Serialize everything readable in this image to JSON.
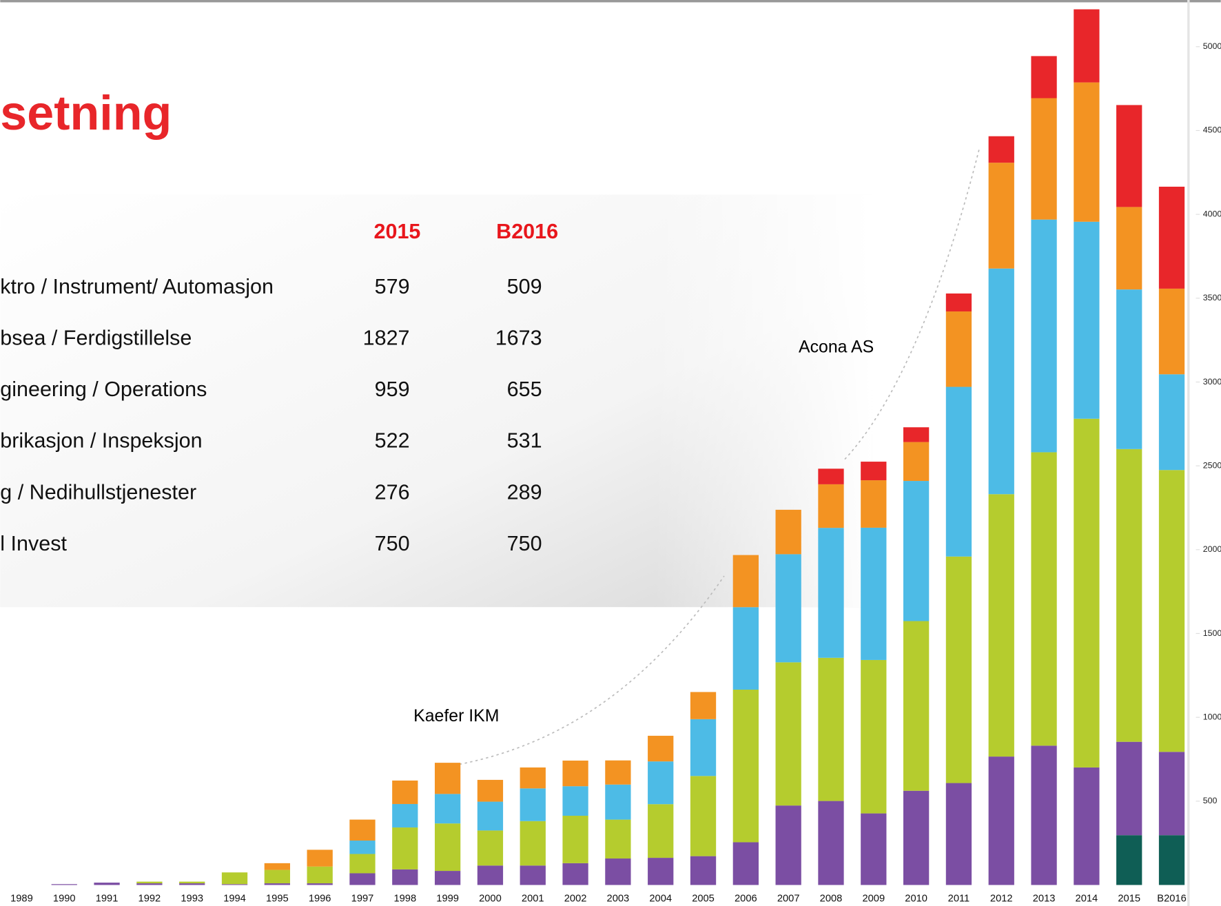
{
  "chart_data": {
    "type": "stacked_bar",
    "title": "setning",
    "annotations": [
      "Kaefer IKM",
      "Acona AS"
    ],
    "categories": [
      "1989",
      "1990",
      "1991",
      "1992",
      "1993",
      "1994",
      "1995",
      "1996",
      "1997",
      "1998",
      "1999",
      "2000",
      "2001",
      "2002",
      "2003",
      "2004",
      "2005",
      "2006",
      "2007",
      "2008",
      "2009",
      "2010",
      "2011",
      "2012",
      "2013",
      "2014",
      "2015",
      "B2016"
    ],
    "series": [
      {
        "color": "#0f5e55",
        "values": [
          0,
          0,
          0,
          0,
          0,
          0,
          0,
          0,
          0,
          0,
          0,
          0,
          0,
          0,
          0,
          0,
          0,
          0,
          0,
          0,
          0,
          0,
          0,
          0,
          0,
          0,
          297,
          297
        ]
      },
      {
        "color": "#7b4ea3",
        "values": [
          0,
          5,
          14,
          10,
          10,
          5,
          10,
          10,
          70,
          93,
          84,
          116,
          116,
          130,
          158,
          162,
          172,
          255,
          474,
          501,
          427,
          562,
          608,
          766,
          831,
          701,
          557,
          497
        ]
      },
      {
        "color": "#b5cc2e",
        "values": [
          0,
          0,
          0,
          10,
          10,
          70,
          80,
          100,
          115,
          250,
          283,
          209,
          265,
          283,
          232,
          320,
          478,
          910,
          854,
          854,
          915,
          1012,
          1351,
          1565,
          1750,
          2080,
          1746,
          1681
        ]
      },
      {
        "color": "#4dbbe6",
        "values": [
          0,
          0,
          0,
          0,
          0,
          0,
          0,
          0,
          80,
          140,
          176,
          172,
          195,
          176,
          209,
          255,
          339,
          492,
          645,
          775,
          789,
          836,
          1012,
          1346,
          1388,
          1175,
          952,
          571
        ]
      },
      {
        "color": "#f39322",
        "values": [
          0,
          0,
          0,
          0,
          0,
          0,
          40,
          100,
          125,
          140,
          186,
          130,
          125,
          153,
          144,
          153,
          162,
          311,
          265,
          260,
          283,
          232,
          450,
          631,
          724,
          831,
          492,
          511
        ]
      },
      {
        "color": "#e8262a",
        "values": [
          0,
          0,
          0,
          0,
          0,
          0,
          0,
          0,
          0,
          0,
          0,
          0,
          0,
          0,
          0,
          0,
          0,
          0,
          0,
          93,
          111,
          88,
          107,
          158,
          251,
          436,
          608,
          608
        ]
      }
    ],
    "ylim": [
      0,
      5300
    ],
    "yticks": [
      500,
      1000,
      1500,
      2000,
      2500,
      3000,
      3500,
      4000,
      4500,
      5000
    ]
  },
  "table": {
    "header": [
      "2015",
      "B2016"
    ],
    "rows": [
      [
        "ktro / Instrument/ Automasjon",
        "579",
        "509"
      ],
      [
        "bsea / Ferdigstillelse",
        "1827",
        "1673"
      ],
      [
        "gineering / Operations",
        "959",
        "655"
      ],
      [
        "brikasjon / Inspeksjon",
        "522",
        "531"
      ],
      [
        "g / Nedihullstjenester",
        "276",
        "289"
      ],
      [
        "l Invest",
        "750",
        "750"
      ]
    ]
  }
}
